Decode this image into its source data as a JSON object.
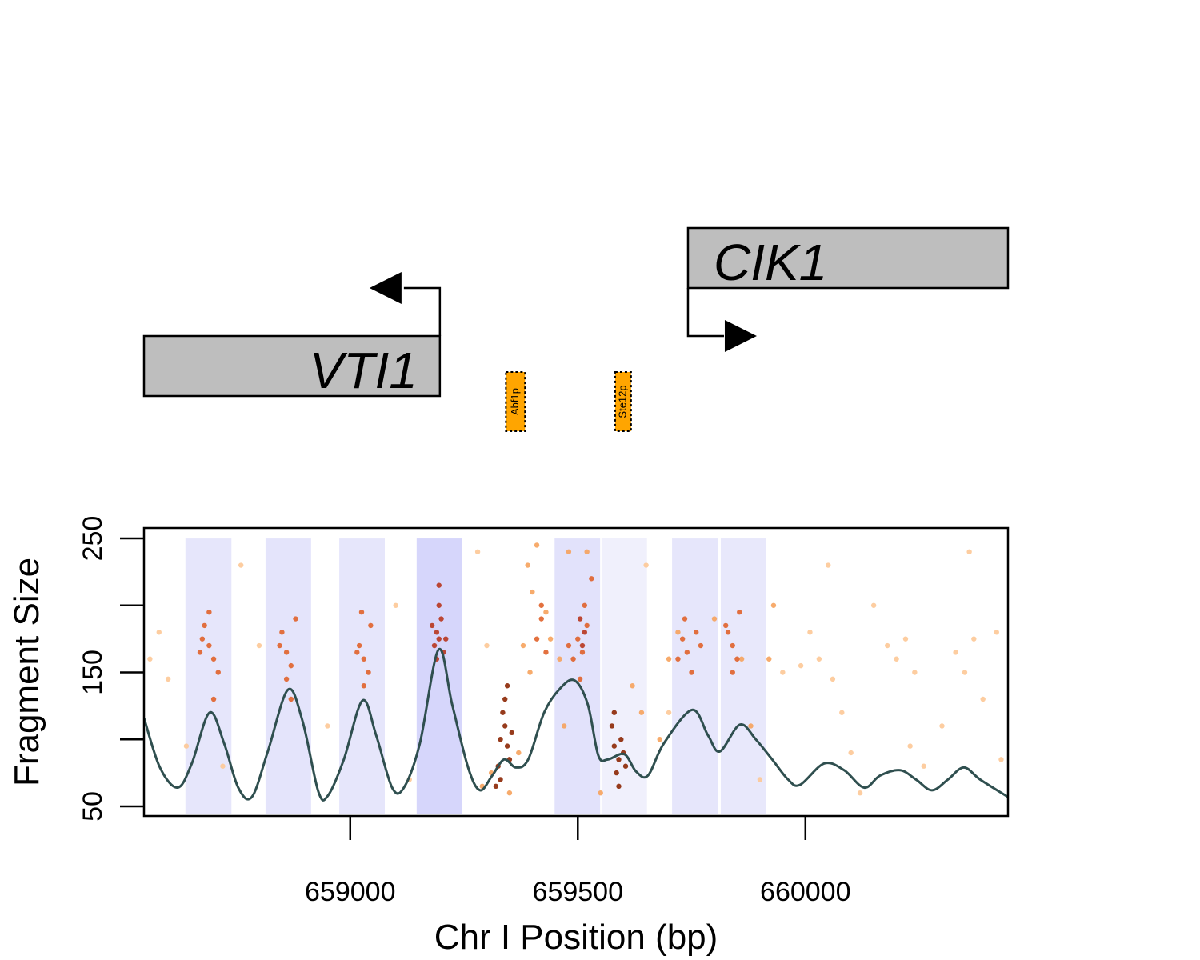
{
  "chart_data": {
    "type": "scatter",
    "xlabel": "Chr I Position (bp)",
    "ylabel": "Fragment Size",
    "xlim": [
      658547,
      660445
    ],
    "ylim": [
      42.8,
      257.8
    ],
    "xticks": [
      659000,
      659500,
      660000
    ],
    "yticks": [
      50,
      150,
      250
    ],
    "minor_yticks": [
      100,
      200
    ],
    "genes": [
      {
        "name": "VTI1",
        "start": 658547,
        "end": 659197,
        "strand": "-"
      },
      {
        "name": "CIK1",
        "start": 659742,
        "end": 660445,
        "strand": "+"
      }
    ],
    "motifs": [
      {
        "name": "Abf1p",
        "start": 659342,
        "end": 659384,
        "color": "#ffa500"
      },
      {
        "name": "Ste12p",
        "start": 659582,
        "end": 659617,
        "color": "#ffa500"
      }
    ],
    "nucleosomes": [
      {
        "start": 658638,
        "end": 658739,
        "color": "#e6e6fb"
      },
      {
        "start": 658814,
        "end": 658914,
        "color": "#e4e4fb"
      },
      {
        "start": 658976,
        "end": 659076,
        "color": "#e6e6fb"
      },
      {
        "start": 659146,
        "end": 659246,
        "color": "#d6d6fb"
      },
      {
        "start": 659449,
        "end": 659549,
        "color": "#e2e2fb"
      },
      {
        "start": 659552,
        "end": 659652,
        "color": "#f0f0fc"
      },
      {
        "start": 659707,
        "end": 659807,
        "color": "#e6e6fb"
      },
      {
        "start": 659814,
        "end": 659914,
        "color": "#e8e8fb"
      }
    ],
    "series": [
      {
        "color": "#fdc896",
        "points": [
          [
            658560,
            160
          ],
          [
            658580,
            180
          ],
          [
            658600,
            145
          ],
          [
            658640,
            95
          ],
          [
            658720,
            80
          ],
          [
            658760,
            230
          ],
          [
            658800,
            170
          ],
          [
            658950,
            110
          ],
          [
            659100,
            200
          ],
          [
            659130,
            70
          ],
          [
            659280,
            240
          ],
          [
            659300,
            170
          ],
          [
            659650,
            230
          ],
          [
            659700,
            120
          ],
          [
            659900,
            70
          ],
          [
            659950,
            150
          ],
          [
            659990,
            155
          ],
          [
            660010,
            180
          ],
          [
            660030,
            160
          ],
          [
            660060,
            145
          ],
          [
            660080,
            120
          ],
          [
            660100,
            90
          ],
          [
            660050,
            230
          ],
          [
            660150,
            200
          ],
          [
            660180,
            170
          ],
          [
            660200,
            160
          ],
          [
            660220,
            175
          ],
          [
            660240,
            150
          ],
          [
            660260,
            80
          ],
          [
            660300,
            110
          ],
          [
            660330,
            165
          ],
          [
            660350,
            150
          ],
          [
            660370,
            175
          ],
          [
            660390,
            130
          ],
          [
            660420,
            180
          ],
          [
            660430,
            85
          ],
          [
            660120,
            60
          ],
          [
            660230,
            95
          ],
          [
            660360,
            240
          ]
        ]
      },
      {
        "color": "#f6a25c",
        "points": [
          [
            659390,
            230
          ],
          [
            659400,
            210
          ],
          [
            659410,
            245
          ],
          [
            659430,
            195
          ],
          [
            659380,
            170
          ],
          [
            659440,
            175
          ],
          [
            659460,
            160
          ],
          [
            659395,
            150
          ],
          [
            659370,
            90
          ],
          [
            659350,
            60
          ],
          [
            659310,
            75
          ],
          [
            659290,
            65
          ],
          [
            659620,
            140
          ],
          [
            659640,
            120
          ],
          [
            659680,
            100
          ],
          [
            659700,
            160
          ],
          [
            659720,
            180
          ],
          [
            659800,
            190
          ],
          [
            659860,
            160
          ],
          [
            659880,
            110
          ],
          [
            659920,
            160
          ],
          [
            659930,
            200
          ],
          [
            659520,
            240
          ],
          [
            659480,
            240
          ],
          [
            659550,
            60
          ],
          [
            659470,
            110
          ]
        ]
      },
      {
        "color": "#e0622a",
        "points": [
          [
            658680,
            185
          ],
          [
            658690,
            170
          ],
          [
            658700,
            160
          ],
          [
            658675,
            175
          ],
          [
            658710,
            150
          ],
          [
            658690,
            195
          ],
          [
            658700,
            130
          ],
          [
            658670,
            165
          ],
          [
            658850,
            180
          ],
          [
            658860,
            165
          ],
          [
            658870,
            155
          ],
          [
            658845,
            170
          ],
          [
            658880,
            190
          ],
          [
            658860,
            145
          ],
          [
            658870,
            130
          ],
          [
            659020,
            170
          ],
          [
            659030,
            160
          ],
          [
            659040,
            150
          ],
          [
            659015,
            165
          ],
          [
            659045,
            185
          ],
          [
            659030,
            140
          ],
          [
            659025,
            195
          ],
          [
            659730,
            175
          ],
          [
            659740,
            165
          ],
          [
            659760,
            180
          ],
          [
            659720,
            160
          ],
          [
            659750,
            150
          ],
          [
            659770,
            170
          ],
          [
            659735,
            190
          ],
          [
            659830,
            180
          ],
          [
            659840,
            170
          ],
          [
            659850,
            160
          ],
          [
            659825,
            185
          ],
          [
            659855,
            195
          ],
          [
            659840,
            150
          ],
          [
            659500,
            175
          ],
          [
            659510,
            165
          ],
          [
            659520,
            185
          ],
          [
            659490,
            160
          ],
          [
            659515,
            200
          ],
          [
            659505,
            145
          ],
          [
            659530,
            220
          ],
          [
            659480,
            170
          ],
          [
            659420,
            190
          ],
          [
            659410,
            175
          ],
          [
            659430,
            165
          ],
          [
            659420,
            200
          ]
        ]
      },
      {
        "color": "#b8361e",
        "points": [
          [
            659190,
            180
          ],
          [
            659195,
            175
          ],
          [
            659200,
            190
          ],
          [
            659185,
            170
          ],
          [
            659205,
            165
          ],
          [
            659195,
            200
          ],
          [
            659180,
            185
          ],
          [
            659210,
            175
          ],
          [
            659190,
            160
          ],
          [
            659195,
            215
          ],
          [
            659515,
            180
          ],
          [
            659505,
            190
          ],
          [
            659510,
            170
          ]
        ]
      },
      {
        "color": "#8c2603",
        "points": [
          [
            659330,
            100
          ],
          [
            659340,
            110
          ],
          [
            659345,
            95
          ],
          [
            659335,
            120
          ],
          [
            659350,
            85
          ],
          [
            659325,
            80
          ],
          [
            659340,
            130
          ],
          [
            659355,
            105
          ],
          [
            659330,
            70
          ],
          [
            659345,
            140
          ],
          [
            659320,
            65
          ],
          [
            659580,
            95
          ],
          [
            659590,
            85
          ],
          [
            659595,
            100
          ],
          [
            659585,
            75
          ],
          [
            659575,
            110
          ],
          [
            659600,
            90
          ],
          [
            659590,
            65
          ],
          [
            659580,
            120
          ],
          [
            659605,
            80
          ]
        ]
      }
    ],
    "density": {
      "color": "#2f4f4f",
      "x": [
        658547,
        658582,
        658621,
        658652,
        658691,
        658723,
        658754,
        658784,
        658819,
        658863,
        658895,
        658930,
        658951,
        658986,
        659027,
        659057,
        659092,
        659118,
        659153,
        659194,
        659224,
        659259,
        659285,
        659312,
        659338,
        659364,
        659391,
        659426,
        659461,
        659493,
        659522,
        659545,
        659566,
        659602,
        659628,
        659654,
        659689,
        659751,
        659786,
        659812,
        659856,
        659891,
        659927,
        659962,
        659988,
        660041,
        660085,
        660129,
        660164,
        660208,
        660243,
        660278,
        660313,
        660348,
        660384,
        660445
      ],
      "values": [
        116,
        79,
        64,
        82,
        120,
        97,
        64,
        57,
        91,
        137,
        114,
        61,
        58,
        85,
        129,
        103,
        64,
        64,
        97,
        167,
        126,
        79,
        62,
        73,
        85,
        79,
        85,
        120,
        138,
        144,
        126,
        88,
        85,
        89,
        76,
        73,
        97,
        122,
        103,
        91,
        111,
        100,
        85,
        70,
        66,
        82,
        77,
        64,
        73,
        77,
        70,
        62,
        70,
        79,
        70,
        57
      ]
    }
  }
}
